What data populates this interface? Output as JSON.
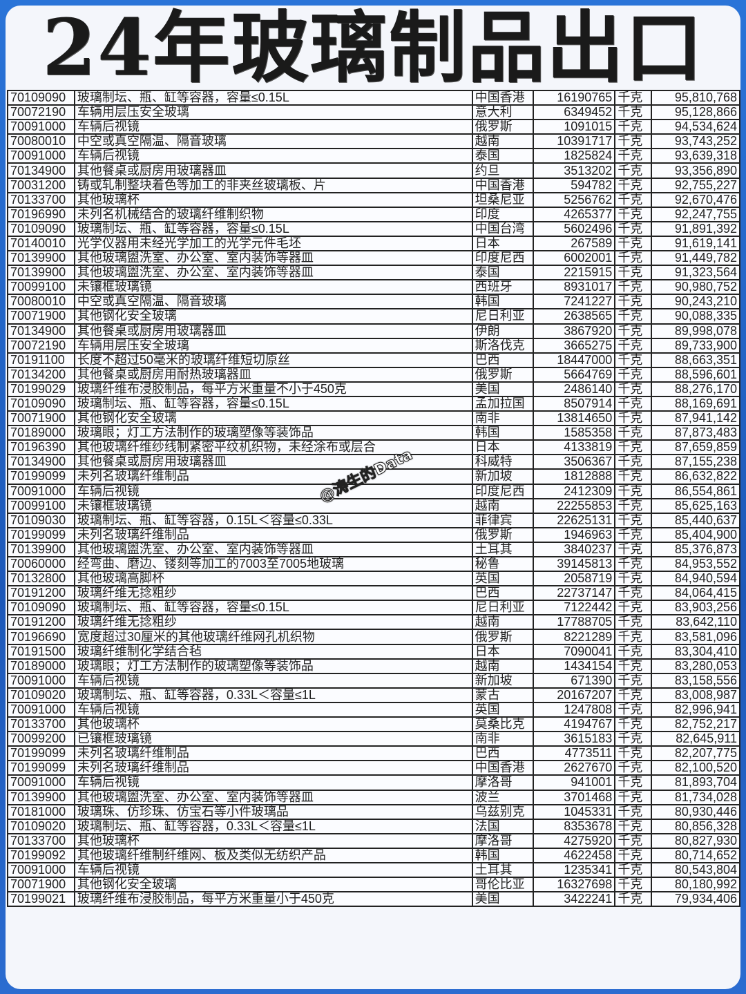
{
  "title": "24年玻璃制品出口",
  "watermark": "@涛生的Data",
  "colors": {
    "frame": "#1f5fc4",
    "card": "#f4f6fb",
    "text": "#222222"
  },
  "unit": "千克",
  "rows": [
    [
      "70109090",
      "玻璃制坛、瓶、缸等容器，容量≤0.15L",
      "中国香港",
      "16190765",
      "千克",
      "95,810,768"
    ],
    [
      "70072190",
      "车辆用层压安全玻璃",
      "意大利",
      "6349452",
      "千克",
      "95,128,866"
    ],
    [
      "70091000",
      "车辆后视镜",
      "俄罗斯",
      "1091015",
      "千克",
      "94,534,624"
    ],
    [
      "70080010",
      "中空或真空隔温、隔音玻璃",
      "越南",
      "10391717",
      "千克",
      "93,743,252"
    ],
    [
      "70091000",
      "车辆后视镜",
      "泰国",
      "1825824",
      "千克",
      "93,639,318"
    ],
    [
      "70134900",
      "其他餐桌或厨房用玻璃器皿",
      "约旦",
      "3513202",
      "千克",
      "93,356,890"
    ],
    [
      "70031200",
      "铸或轧制整块着色等加工的非夹丝玻璃板、片",
      "中国香港",
      "594782",
      "千克",
      "92,755,227"
    ],
    [
      "70133700",
      "其他玻璃杯",
      "坦桑尼亚",
      "5256762",
      "千克",
      "92,670,476"
    ],
    [
      "70196990",
      "未列名机械结合的玻璃纤维制织物",
      "印度",
      "4265377",
      "千克",
      "92,247,755"
    ],
    [
      "70109090",
      "玻璃制坛、瓶、缸等容器，容量≤0.15L",
      "中国台湾",
      "5602496",
      "千克",
      "91,891,392"
    ],
    [
      "70140010",
      "光学仪器用未经光学加工的光学元件毛坯",
      "日本",
      "267589",
      "千克",
      "91,619,141"
    ],
    [
      "70139900",
      "其他玻璃盥洗室、办公室、室内装饰等器皿",
      "印度尼西",
      "6002001",
      "千克",
      "91,449,782"
    ],
    [
      "70139900",
      "其他玻璃盥洗室、办公室、室内装饰等器皿",
      "泰国",
      "2215915",
      "千克",
      "91,323,564"
    ],
    [
      "70099100",
      "未镶框玻璃镜",
      "西班牙",
      "8931017",
      "千克",
      "90,980,752"
    ],
    [
      "70080010",
      "中空或真空隔温、隔音玻璃",
      "韩国",
      "7241227",
      "千克",
      "90,243,210"
    ],
    [
      "70071900",
      "其他钢化安全玻璃",
      "尼日利亚",
      "2638565",
      "千克",
      "90,088,335"
    ],
    [
      "70134900",
      "其他餐桌或厨房用玻璃器皿",
      "伊朗",
      "3867920",
      "千克",
      "89,998,078"
    ],
    [
      "70072190",
      "车辆用层压安全玻璃",
      "斯洛伐克",
      "3665275",
      "千克",
      "89,733,900"
    ],
    [
      "70191100",
      "长度不超过50毫米的玻璃纤维短切原丝",
      "巴西",
      "18447000",
      "千克",
      "88,663,351"
    ],
    [
      "70134200",
      "其他餐桌或厨房用耐热玻璃器皿",
      "俄罗斯",
      "5664769",
      "千克",
      "88,596,601"
    ],
    [
      "70199029",
      "玻璃纤维布浸胶制品，每平方米重量不小于450克",
      "美国",
      "2486140",
      "千克",
      "88,276,170"
    ],
    [
      "70109090",
      "玻璃制坛、瓶、缸等容器，容量≤0.15L",
      "孟加拉国",
      "8507914",
      "千克",
      "88,169,691"
    ],
    [
      "70071900",
      "其他钢化安全玻璃",
      "南非",
      "13814650",
      "千克",
      "87,941,142"
    ],
    [
      "70189000",
      "玻璃眼；灯工方法制作的玻璃塑像等装饰品",
      "韩国",
      "1585358",
      "千克",
      "87,873,483"
    ],
    [
      "70196390",
      "其他玻璃纤维纱线制紧密平纹机织物，未经涂布或层合",
      "日本",
      "4133819",
      "千克",
      "87,659,859"
    ],
    [
      "70134900",
      "其他餐桌或厨房用玻璃器皿",
      "科威特",
      "3506367",
      "千克",
      "87,155,238"
    ],
    [
      "70199099",
      "未列名玻璃纤维制品",
      "新加坡",
      "1812888",
      "千克",
      "86,632,822"
    ],
    [
      "70091000",
      "车辆后视镜",
      "印度尼西",
      "2412309",
      "千克",
      "86,554,861"
    ],
    [
      "70099100",
      "未镶框玻璃镜",
      "越南",
      "22255853",
      "千克",
      "85,625,163"
    ],
    [
      "70109030",
      "玻璃制坛、瓶、缸等容器，0.15L＜容量≤0.33L",
      "菲律宾",
      "22625131",
      "千克",
      "85,440,637"
    ],
    [
      "70199099",
      "未列名玻璃纤维制品",
      "俄罗斯",
      "1946963",
      "千克",
      "85,404,900"
    ],
    [
      "70139900",
      "其他玻璃盥洗室、办公室、室内装饰等器皿",
      "土耳其",
      "3840237",
      "千克",
      "85,376,873"
    ],
    [
      "70060000",
      "经弯曲、磨边、镂刻等加工的7003至7005地玻璃",
      "秘鲁",
      "39145813",
      "千克",
      "84,953,552"
    ],
    [
      "70132800",
      "其他玻璃高脚杯",
      "英国",
      "2058719",
      "千克",
      "84,940,594"
    ],
    [
      "70191200",
      "玻璃纤维无捻粗纱",
      "巴西",
      "22737147",
      "千克",
      "84,064,415"
    ],
    [
      "70109090",
      "玻璃制坛、瓶、缸等容器，容量≤0.15L",
      "尼日利亚",
      "7122442",
      "千克",
      "83,903,256"
    ],
    [
      "70191200",
      "玻璃纤维无捻粗纱",
      "越南",
      "17788705",
      "千克",
      "83,642,110"
    ],
    [
      "70196690",
      "宽度超过30厘米的其他玻璃纤维网孔机织物",
      "俄罗斯",
      "8221289",
      "千克",
      "83,581,096"
    ],
    [
      "70191500",
      "玻璃纤维制化学结合毡",
      "日本",
      "7090041",
      "千克",
      "83,304,410"
    ],
    [
      "70189000",
      "玻璃眼；灯工方法制作的玻璃塑像等装饰品",
      "越南",
      "1434154",
      "千克",
      "83,280,053"
    ],
    [
      "70091000",
      "车辆后视镜",
      "新加坡",
      "671390",
      "千克",
      "83,158,556"
    ],
    [
      "70109020",
      "玻璃制坛、瓶、缸等容器，0.33L＜容量≤1L",
      "蒙古",
      "20167207",
      "千克",
      "83,008,987"
    ],
    [
      "70091000",
      "车辆后视镜",
      "英国",
      "1247808",
      "千克",
      "82,996,941"
    ],
    [
      "70133700",
      "其他玻璃杯",
      "莫桑比克",
      "4194767",
      "千克",
      "82,752,217"
    ],
    [
      "70099200",
      "已镶框玻璃镜",
      "南非",
      "3615183",
      "千克",
      "82,645,911"
    ],
    [
      "70199099",
      "未列名玻璃纤维制品",
      "巴西",
      "4773511",
      "千克",
      "82,207,775"
    ],
    [
      "70199099",
      "未列名玻璃纤维制品",
      "中国香港",
      "2627670",
      "千克",
      "82,100,520"
    ],
    [
      "70091000",
      "车辆后视镜",
      "摩洛哥",
      "941001",
      "千克",
      "81,893,704"
    ],
    [
      "70139900",
      "其他玻璃盥洗室、办公室、室内装饰等器皿",
      "波兰",
      "3701468",
      "千克",
      "81,734,028"
    ],
    [
      "70181000",
      "玻璃珠、仿珍珠、仿宝石等小件玻璃品",
      "乌兹别克",
      "1045331",
      "千克",
      "80,930,446"
    ],
    [
      "70109020",
      "玻璃制坛、瓶、缸等容器，0.33L＜容量≤1L",
      "法国",
      "8353678",
      "千克",
      "80,856,328"
    ],
    [
      "70133700",
      "其他玻璃杯",
      "摩洛哥",
      "4275920",
      "千克",
      "80,827,930"
    ],
    [
      "70199092",
      "其他玻璃纤维制纤维网、板及类似无纺织产品",
      "韩国",
      "4622458",
      "千克",
      "80,714,652"
    ],
    [
      "70091000",
      "车辆后视镜",
      "土耳其",
      "1235341",
      "千克",
      "80,543,804"
    ],
    [
      "70071900",
      "其他钢化安全玻璃",
      "哥伦比亚",
      "16327698",
      "千克",
      "80,180,992"
    ],
    [
      "70199021",
      "玻璃纤维布浸胶制品，每平方米重量小于450克",
      "美国",
      "3422241",
      "千克",
      "79,934,406"
    ]
  ]
}
